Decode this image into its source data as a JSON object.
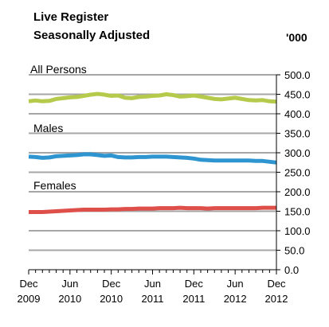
{
  "chart_data": {
    "type": "line",
    "title": [
      "Live Register",
      "Seasonally Adjusted"
    ],
    "unit": "'000",
    "ylim": [
      0,
      500
    ],
    "y_ticks": [
      0,
      50,
      100,
      150,
      200,
      250,
      300,
      350,
      400,
      450,
      500
    ],
    "y_tick_labels": [
      "0.0",
      "50.0",
      "100.0",
      "150.0",
      "200.0",
      "250.0",
      "300.0",
      "350.0",
      "400.0",
      "450.0",
      "500.0"
    ],
    "x_ticks": [
      {
        "month": "Dec",
        "year": "2009",
        "index": 0
      },
      {
        "month": "Jun",
        "year": "2010",
        "index": 6
      },
      {
        "month": "Dec",
        "year": "2010",
        "index": 12
      },
      {
        "month": "Jun",
        "year": "2011",
        "index": 18
      },
      {
        "month": "Dec",
        "year": "2011",
        "index": 24
      },
      {
        "month": "Jun",
        "year": "2012",
        "index": 30
      },
      {
        "month": "Dec",
        "year": "2012",
        "index": 36
      }
    ],
    "grid": true,
    "series": [
      {
        "name": "All Persons",
        "color": "#b5c94a",
        "values": [
          432,
          434,
          432,
          433,
          438,
          440,
          442,
          443,
          446,
          449,
          451,
          449,
          446,
          447,
          441,
          440,
          443,
          444,
          446,
          447,
          450,
          448,
          444,
          445,
          447,
          444,
          441,
          438,
          437,
          439,
          441,
          438,
          435,
          434,
          435,
          432,
          431
        ]
      },
      {
        "name": "Males",
        "color": "#2e95d1",
        "values": [
          290,
          289,
          287,
          288,
          291,
          292,
          293,
          294,
          296,
          296,
          294,
          292,
          293,
          289,
          288,
          288,
          289,
          289,
          290,
          290,
          290,
          289,
          288,
          287,
          285,
          282,
          281,
          280,
          280,
          280,
          280,
          280,
          280,
          279,
          279,
          277,
          275
        ]
      },
      {
        "name": "Females",
        "color": "#de4f4a",
        "values": [
          148,
          148,
          148,
          149,
          150,
          151,
          152,
          153,
          154,
          154,
          154,
          154,
          155,
          155,
          156,
          156,
          157,
          157,
          157,
          158,
          158,
          158,
          159,
          158,
          158,
          158,
          157,
          158,
          158,
          158,
          158,
          158,
          158,
          158,
          159,
          159,
          159
        ]
      }
    ]
  }
}
